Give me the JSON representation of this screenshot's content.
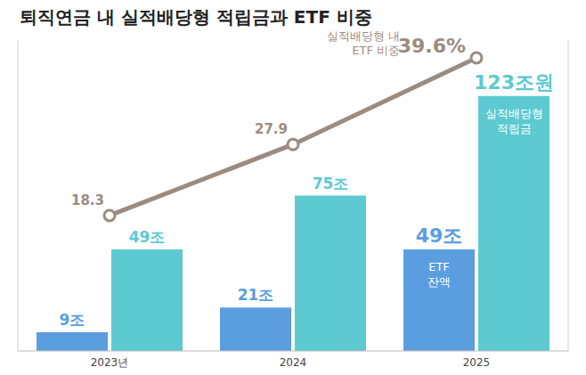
{
  "chart_data": {
    "type": "bar",
    "title": "퇴직연금 내 실적배당형 적립금과 ETF 비중",
    "categories": [
      "2023년",
      "2024",
      "2025"
    ],
    "ylim": [
      0,
      150
    ],
    "y2lim": [
      0,
      42
    ],
    "tick_labels": "x",
    "data_labels": true,
    "series": [
      {
        "name": "ETF 잔액",
        "type": "bar",
        "color": "#5b9ee0",
        "values": [
          9,
          21,
          49
        ],
        "value_labels": [
          "9조",
          "21조",
          "49조"
        ]
      },
      {
        "name": "실적배당형 적립금",
        "type": "bar",
        "color": "#5ccad0",
        "values": [
          49,
          75,
          123
        ],
        "value_labels": [
          "49조",
          "75조",
          "123조원"
        ]
      },
      {
        "name": "실적배당형 내 ETF 비중",
        "type": "line",
        "axis": "y2",
        "color": "#9c8b80",
        "marker": "circle",
        "values": [
          18.3,
          27.9,
          39.6
        ],
        "value_labels": [
          "18.3",
          "27.9",
          "39.6%"
        ]
      }
    ]
  }
}
